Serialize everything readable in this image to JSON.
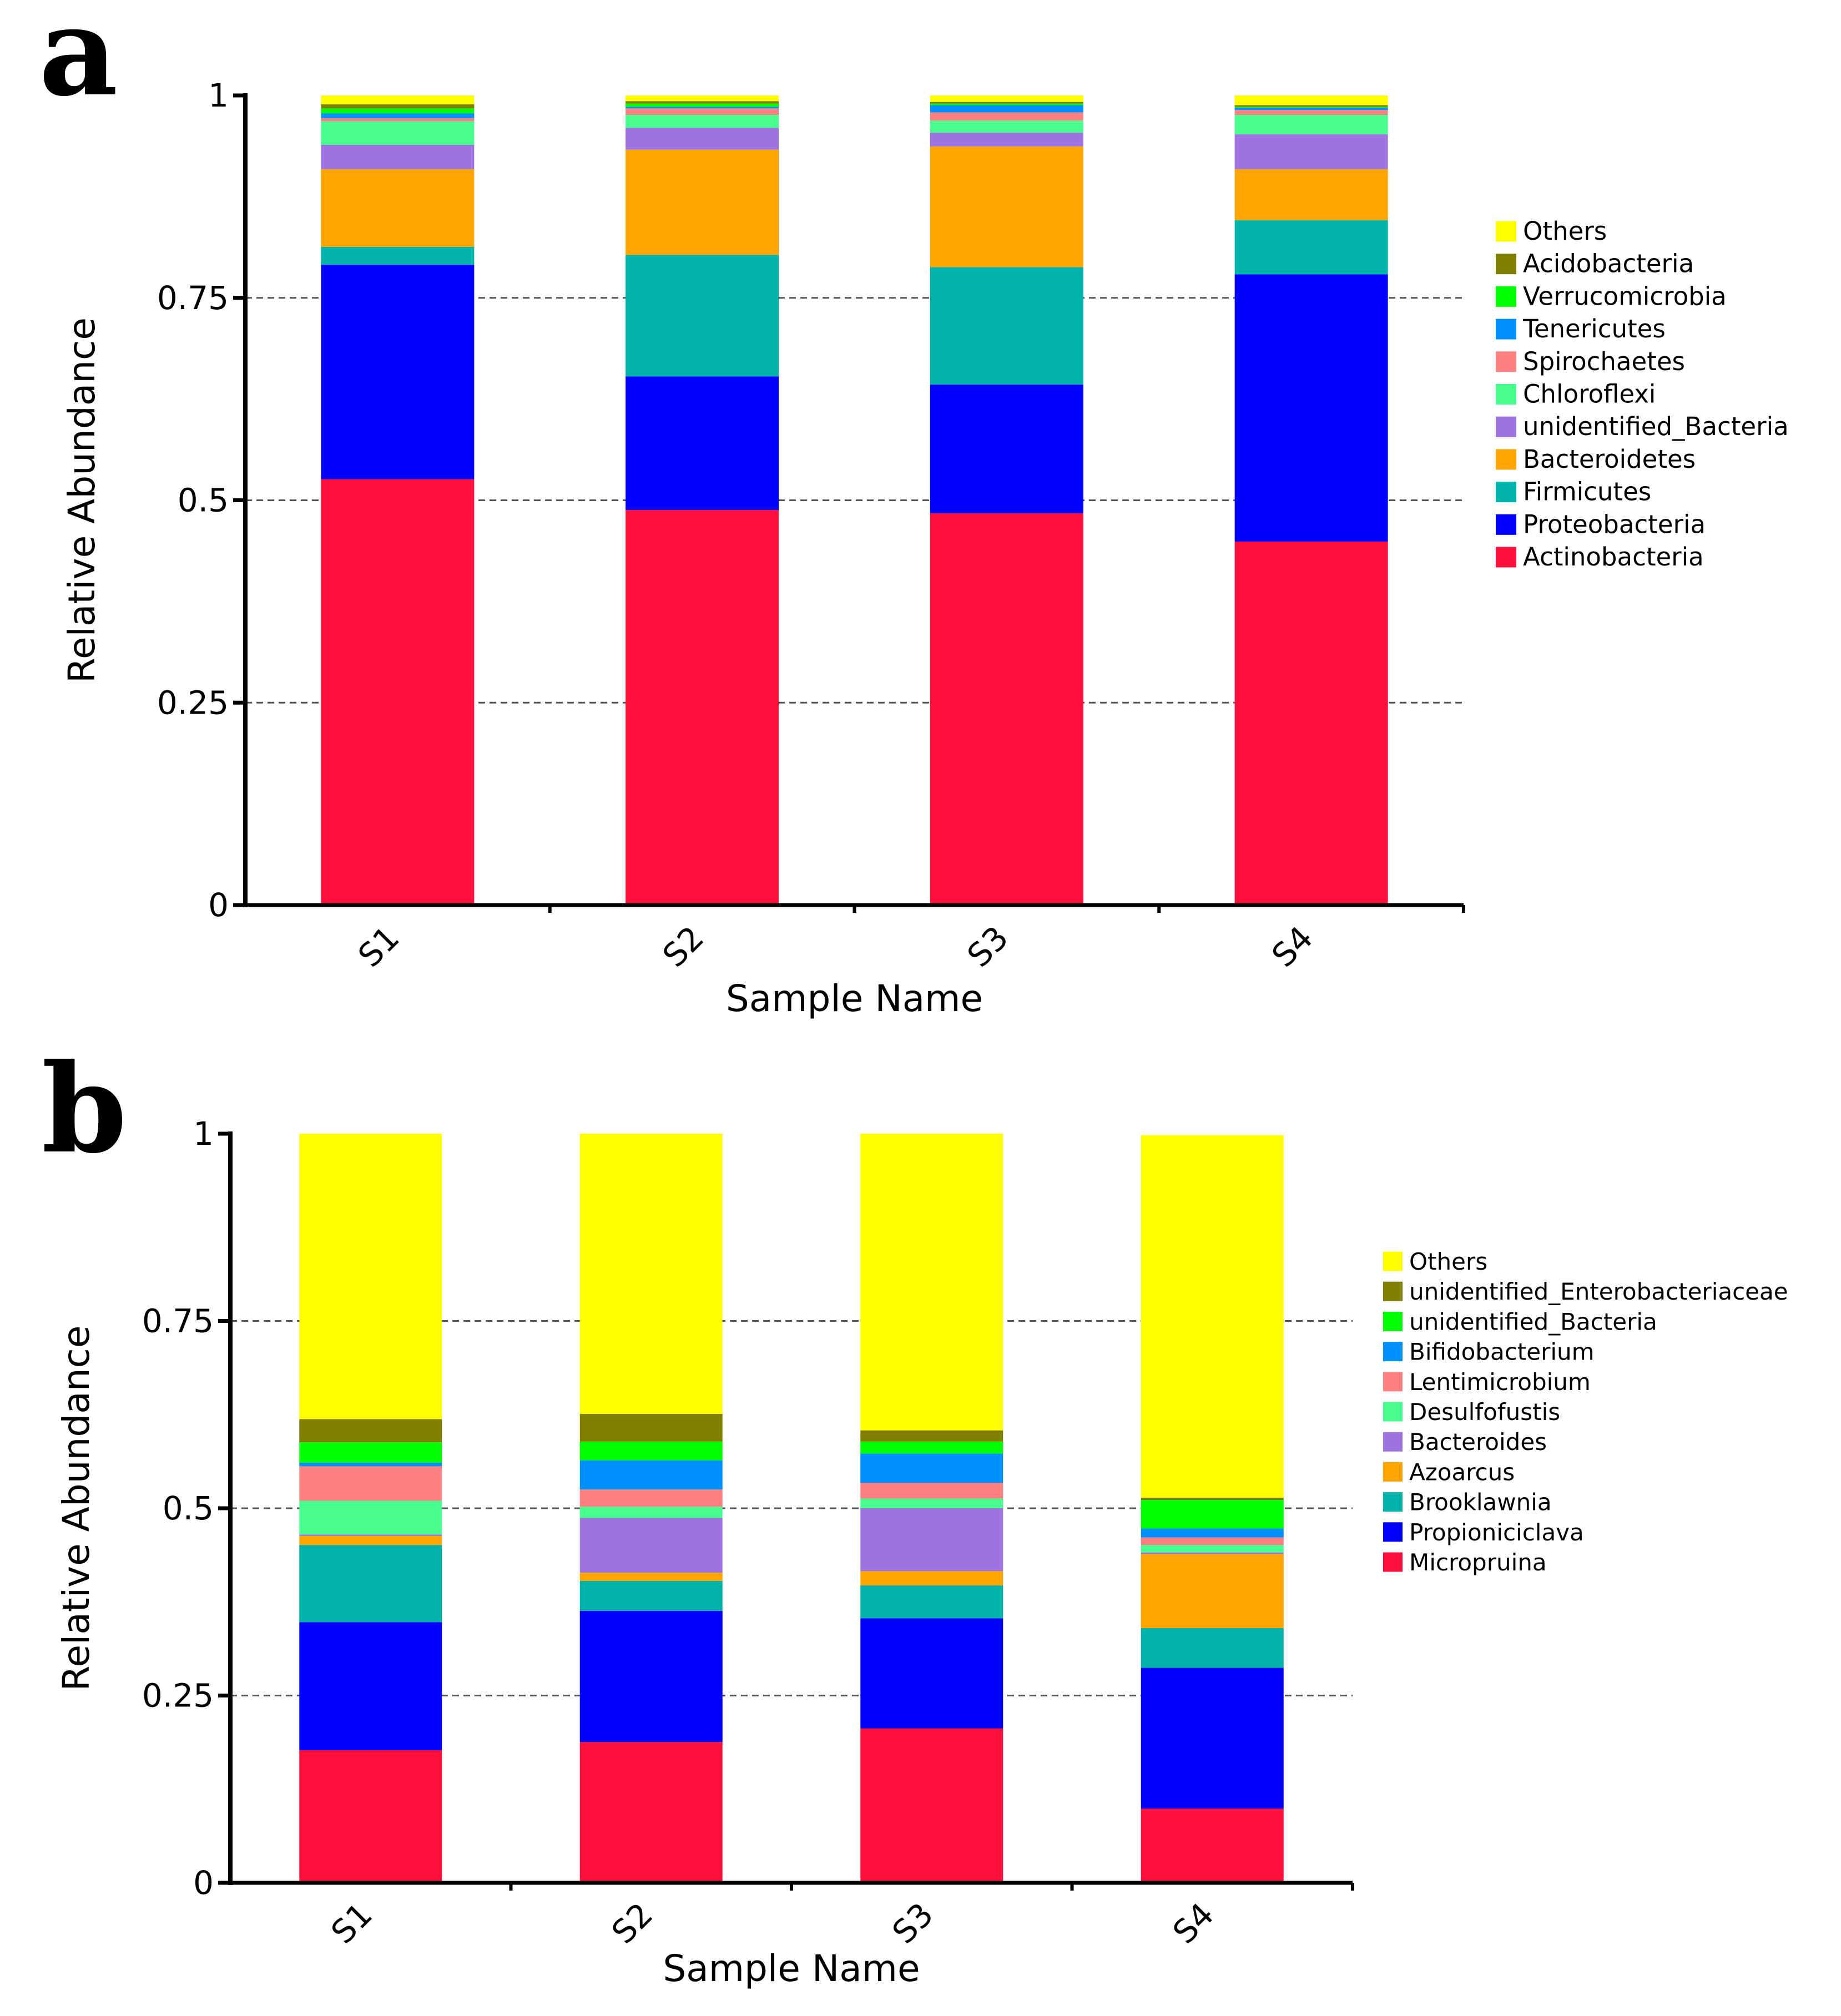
{
  "chart_data": [
    {
      "type": "bar",
      "stacked": true,
      "panel_label": "a",
      "xlabel": "Sample Name",
      "ylabel": "Relative Abundance",
      "ylim": [
        0,
        1
      ],
      "yticks": [
        "0",
        "0.25",
        "0.5",
        "0.75",
        "1"
      ],
      "grid": "dashed at y ticks",
      "legend_position": "right",
      "categories": [
        "S1",
        "S2",
        "S3",
        "S4"
      ],
      "series": [
        {
          "name": "Actinobacteria",
          "color": "#FF0F3C",
          "values": [
            0.526,
            0.488,
            0.484,
            0.449
          ]
        },
        {
          "name": "Proteobacteria",
          "color": "#0000FF",
          "values": [
            0.265,
            0.165,
            0.159,
            0.33
          ]
        },
        {
          "name": "Firmicutes",
          "color": "#00B3AA",
          "values": [
            0.022,
            0.15,
            0.145,
            0.067
          ]
        },
        {
          "name": "Bacteroidetes",
          "color": "#FFA500",
          "values": [
            0.096,
            0.13,
            0.149,
            0.063
          ]
        },
        {
          "name": "unidentified_Bacteria",
          "color": "#A074E0",
          "values": [
            0.03,
            0.027,
            0.017,
            0.043
          ]
        },
        {
          "name": "Chloroflexi",
          "color": "#48FF90",
          "values": [
            0.029,
            0.016,
            0.015,
            0.024
          ]
        },
        {
          "name": "Spirochaetes",
          "color": "#FF8080",
          "values": [
            0.004,
            0.008,
            0.01,
            0.006
          ]
        },
        {
          "name": "Tenericutes",
          "color": "#0091FF",
          "values": [
            0.006,
            0.002,
            0.009,
            0.003
          ]
        },
        {
          "name": "Verrucomicrobia",
          "color": "#00FF00",
          "values": [
            0.006,
            0.004,
            0.002,
            0.001
          ]
        },
        {
          "name": "Acidobacteria",
          "color": "#808000",
          "values": [
            0.005,
            0.003,
            0.002,
            0.002
          ]
        },
        {
          "name": "Others",
          "color": "#FFFF00",
          "values": [
            0.011,
            0.007,
            0.008,
            0.012
          ]
        }
      ]
    },
    {
      "type": "bar",
      "stacked": true,
      "panel_label": "b",
      "xlabel": "Sample Name",
      "ylabel": "Relative Abundance",
      "ylim": [
        0,
        1
      ],
      "yticks": [
        "0",
        "0.25",
        "0.5",
        "0.75",
        "1"
      ],
      "grid": "dashed at y ticks",
      "legend_position": "right",
      "categories": [
        "S1",
        "S2",
        "S3",
        "S4"
      ],
      "series": [
        {
          "name": "Micropruina",
          "color": "#FF0F3C",
          "values": [
            0.177,
            0.188,
            0.206,
            0.099
          ]
        },
        {
          "name": "Propioniciclava",
          "color": "#0000FF",
          "values": [
            0.171,
            0.175,
            0.147,
            0.188
          ]
        },
        {
          "name": "Brooklawnia",
          "color": "#00B3AA",
          "values": [
            0.103,
            0.04,
            0.044,
            0.053
          ]
        },
        {
          "name": "Azoarcus",
          "color": "#FFA500",
          "values": [
            0.012,
            0.011,
            0.019,
            0.099
          ]
        },
        {
          "name": "Bacteroides",
          "color": "#A074E0",
          "values": [
            0.002,
            0.073,
            0.084,
            0.002
          ]
        },
        {
          "name": "Desulfofustis",
          "color": "#48FF90",
          "values": [
            0.045,
            0.015,
            0.013,
            0.01
          ]
        },
        {
          "name": "Lentimicrobium",
          "color": "#FF8080",
          "values": [
            0.046,
            0.023,
            0.021,
            0.01
          ]
        },
        {
          "name": "Bifidobacterium",
          "color": "#0091FF",
          "values": [
            0.005,
            0.039,
            0.039,
            0.012
          ]
        },
        {
          "name": "unidentified_Bacteria",
          "color": "#00FF00",
          "values": [
            0.027,
            0.025,
            0.016,
            0.038
          ]
        },
        {
          "name": "unidentified_Enterobacteriaceae",
          "color": "#808000",
          "values": [
            0.031,
            0.037,
            0.015,
            0.003
          ]
        },
        {
          "name": "Others",
          "color": "#FFFF00",
          "values": [
            0.381,
            0.374,
            0.396,
            0.484
          ]
        }
      ]
    }
  ]
}
